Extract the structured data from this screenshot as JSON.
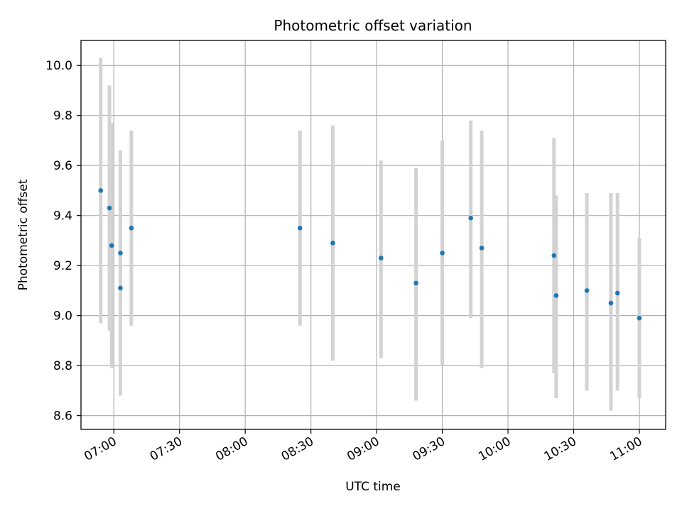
{
  "chart_data": {
    "type": "scatter",
    "title": "Photometric offset variation",
    "xlabel": "UTC time",
    "ylabel": "Photometric offset",
    "grid": true,
    "x_ticks": [
      "07:00",
      "07:30",
      "08:00",
      "08:30",
      "09:00",
      "09:30",
      "10:00",
      "10:30",
      "11:00"
    ],
    "xlim": [
      "06:45",
      "11:12"
    ],
    "y_ticks": [
      "8.6",
      "8.8",
      "9.0",
      "9.2",
      "9.4",
      "9.6",
      "9.8",
      "10.0"
    ],
    "ylim": [
      8.545,
      10.1
    ],
    "point_color": "#1f77b4",
    "errorbar_color": "#d3d3d3",
    "points": [
      {
        "time": "06:54",
        "y": 9.5,
        "yerr_low": 8.97,
        "yerr_high": 10.03
      },
      {
        "time": "06:58",
        "y": 9.43,
        "yerr_low": 8.94,
        "yerr_high": 9.92
      },
      {
        "time": "06:59",
        "y": 9.28,
        "yerr_low": 8.79,
        "yerr_high": 9.77
      },
      {
        "time": "07:03",
        "y": 9.25,
        "yerr_low": 8.84,
        "yerr_high": 9.54
      },
      {
        "time": "07:03",
        "y": 9.11,
        "yerr_low": 8.68,
        "yerr_high": 9.66
      },
      {
        "time": "07:08",
        "y": 9.35,
        "yerr_low": 8.96,
        "yerr_high": 9.74
      },
      {
        "time": "08:25",
        "y": 9.35,
        "yerr_low": 8.96,
        "yerr_high": 9.74
      },
      {
        "time": "08:40",
        "y": 9.29,
        "yerr_low": 8.82,
        "yerr_high": 9.76
      },
      {
        "time": "09:02",
        "y": 9.23,
        "yerr_low": 8.83,
        "yerr_high": 9.62
      },
      {
        "time": "09:18",
        "y": 9.13,
        "yerr_low": 8.66,
        "yerr_high": 9.59
      },
      {
        "time": "09:30",
        "y": 9.25,
        "yerr_low": 8.8,
        "yerr_high": 9.7
      },
      {
        "time": "09:43",
        "y": 9.39,
        "yerr_low": 8.99,
        "yerr_high": 9.78
      },
      {
        "time": "09:48",
        "y": 9.27,
        "yerr_low": 8.79,
        "yerr_high": 9.74
      },
      {
        "time": "10:21",
        "y": 9.24,
        "yerr_low": 8.77,
        "yerr_high": 9.71
      },
      {
        "time": "10:22",
        "y": 9.08,
        "yerr_low": 8.67,
        "yerr_high": 9.48
      },
      {
        "time": "10:36",
        "y": 9.1,
        "yerr_low": 8.7,
        "yerr_high": 9.49
      },
      {
        "time": "10:47",
        "y": 9.05,
        "yerr_low": 8.62,
        "yerr_high": 9.49
      },
      {
        "time": "10:50",
        "y": 9.09,
        "yerr_low": 8.7,
        "yerr_high": 9.49
      },
      {
        "time": "11:00",
        "y": 8.99,
        "yerr_low": 8.67,
        "yerr_high": 9.31
      }
    ]
  }
}
